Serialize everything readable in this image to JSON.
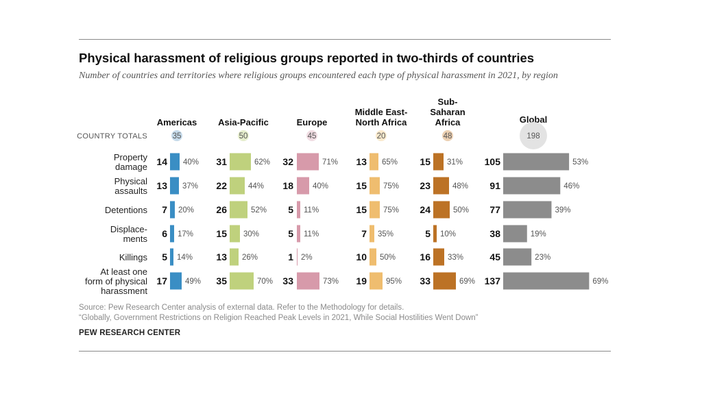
{
  "title": "Physical harassment of religious groups reported in two-thirds of countries",
  "subtitle": "Number of countries and territories where religious groups encountered each type of physical harassment in 2021, by region",
  "country_totals_label": "COUNTRY TOTALS",
  "source_line1": "Source: Pew Research Center analysis of external data. Refer to the Methodology for details.",
  "source_line2": "“Globally, Government Restrictions on Religion Reached Peak Levels in 2021, While Social Hostilities Went Down”",
  "brand": "PEW RESEARCH CENTER",
  "chart_data": {
    "type": "bar",
    "categories": [
      [
        "Property",
        "damage"
      ],
      [
        "Physical",
        "assaults"
      ],
      [
        "Detentions"
      ],
      [
        "Displace-",
        "ments"
      ],
      [
        "Killings"
      ],
      [
        "At least one",
        "form of physical",
        "harassment"
      ]
    ],
    "series": [
      {
        "name": [
          "Americas"
        ],
        "total": 35,
        "color": "#3a8ec4",
        "badge_color": "#c5daea",
        "values": [
          14,
          13,
          7,
          6,
          5,
          17
        ],
        "percents": [
          "40%",
          "37%",
          "20%",
          "17%",
          "14%",
          "49%"
        ]
      },
      {
        "name": [
          "Asia-Pacific"
        ],
        "total": 50,
        "color": "#bfd17d",
        "badge_color": "#e6eecd",
        "values": [
          31,
          22,
          26,
          15,
          13,
          35
        ],
        "percents": [
          "62%",
          "44%",
          "52%",
          "30%",
          "26%",
          "70%"
        ]
      },
      {
        "name": [
          "Europe"
        ],
        "total": 45,
        "color": "#d79aaa",
        "badge_color": "#f1dde3",
        "values": [
          32,
          18,
          5,
          5,
          1,
          33
        ],
        "percents": [
          "71%",
          "40%",
          "11%",
          "11%",
          "2%",
          "73%"
        ]
      },
      {
        "name": [
          "Middle East-",
          "North Africa"
        ],
        "total": 20,
        "color": "#efbd6f",
        "badge_color": "#fbeacd",
        "values": [
          13,
          15,
          15,
          7,
          10,
          19
        ],
        "percents": [
          "65%",
          "75%",
          "75%",
          "35%",
          "50%",
          "95%"
        ]
      },
      {
        "name": [
          "Sub-",
          "Saharan",
          "Africa"
        ],
        "total": 48,
        "color": "#bc7225",
        "badge_color": "#ecd0b2",
        "values": [
          15,
          23,
          24,
          5,
          16,
          33
        ],
        "percents": [
          "31%",
          "48%",
          "50%",
          "10%",
          "33%",
          "69%"
        ]
      },
      {
        "name": [
          "Global"
        ],
        "total": 198,
        "color": "#8c8c8c",
        "badge_color": "#e3e3e3",
        "values": [
          105,
          91,
          77,
          38,
          45,
          137
        ],
        "percents": [
          "53%",
          "46%",
          "39%",
          "19%",
          "23%",
          "69%"
        ]
      }
    ]
  }
}
